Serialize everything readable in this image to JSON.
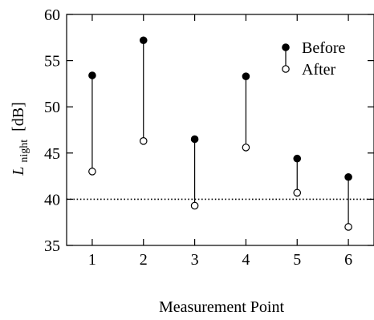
{
  "chart_data": {
    "type": "scatter",
    "xlabel": "Measurement Point",
    "ylabel_main": "L",
    "ylabel_sub": "night",
    "ylabel_unit": "[dB]",
    "categories": [
      "1",
      "2",
      "3",
      "4",
      "5",
      "6"
    ],
    "x": [
      1,
      2,
      3,
      4,
      5,
      6
    ],
    "xlim": [
      0.5,
      6.5
    ],
    "ylim": [
      35,
      60
    ],
    "yticks": [
      35,
      40,
      45,
      50,
      55,
      60
    ],
    "series": [
      {
        "name": "Before",
        "marker": "filled-circle",
        "values": [
          53.4,
          57.2,
          46.5,
          53.3,
          44.4,
          42.4
        ]
      },
      {
        "name": "After",
        "marker": "open-circle",
        "values": [
          43.0,
          46.3,
          39.3,
          45.6,
          40.7,
          37.0
        ]
      }
    ],
    "reference_line": {
      "y": 40,
      "style": "dotted"
    },
    "legend_position": "top-right",
    "grid": false,
    "colors": {
      "axis": "#000000",
      "marker": "#000000",
      "open_marker_fill": "#ffffff"
    }
  }
}
